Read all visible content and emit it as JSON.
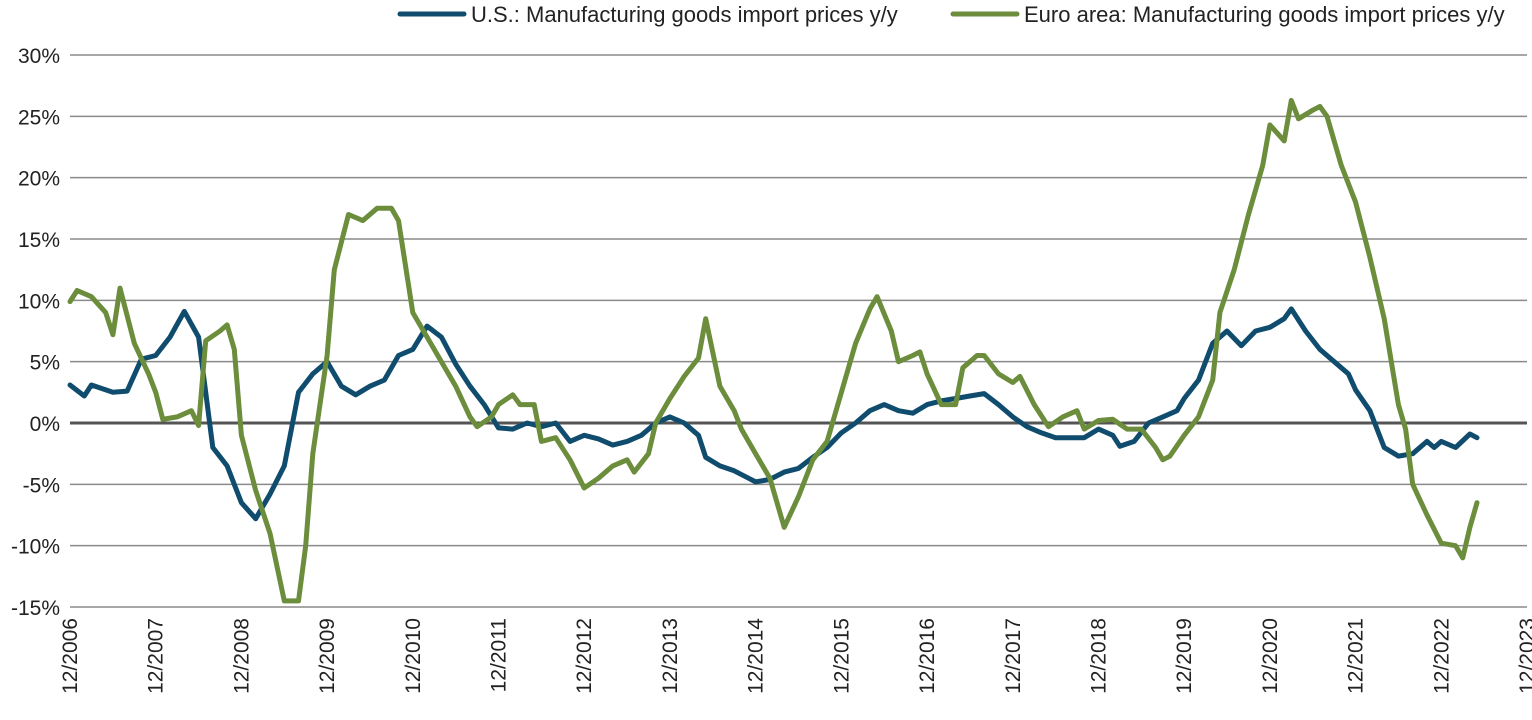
{
  "chart_data": {
    "type": "line",
    "title": "",
    "xlabel": "",
    "ylabel": "",
    "ylim": [
      -15,
      30
    ],
    "y_ticks": [
      30,
      25,
      20,
      15,
      10,
      5,
      0,
      -5,
      -10,
      -15
    ],
    "y_tick_labels": [
      "30%",
      "25%",
      "20%",
      "15%",
      "10%",
      "5%",
      "0%",
      "-5%",
      "-10%",
      "-15%"
    ],
    "x_tick_labels": [
      "12/2006",
      "12/2007",
      "12/2008",
      "12/2009",
      "12/2010",
      "12/2011",
      "12/2012",
      "12/2013",
      "12/2014",
      "12/2015",
      "12/2016",
      "12/2017",
      "12/2018",
      "12/2019",
      "12/2020",
      "12/2021",
      "12/2022",
      "12/2023"
    ],
    "x_start": "12/2006",
    "x_end": "12/2023",
    "grid": true,
    "legend_position": "top",
    "series": [
      {
        "name": "U.S.: Manufacturing goods import prices y/y",
        "color": "#0f4c6e",
        "points": [
          [
            "12/2006",
            3.1
          ],
          [
            "02/2007",
            2.2
          ],
          [
            "03/2007",
            3.1
          ],
          [
            "06/2007",
            2.5
          ],
          [
            "08/2007",
            2.6
          ],
          [
            "10/2007",
            5.2
          ],
          [
            "12/2007",
            5.5
          ],
          [
            "02/2008",
            7.0
          ],
          [
            "04/2008",
            9.1
          ],
          [
            "06/2008",
            7.0
          ],
          [
            "08/2008",
            -2.0
          ],
          [
            "10/2008",
            -3.5
          ],
          [
            "12/2008",
            -6.5
          ],
          [
            "02/2009",
            -7.8
          ],
          [
            "04/2009",
            -5.8
          ],
          [
            "06/2009",
            -3.5
          ],
          [
            "08/2009",
            2.5
          ],
          [
            "10/2009",
            4.0
          ],
          [
            "12/2009",
            5.0
          ],
          [
            "02/2010",
            3.0
          ],
          [
            "04/2010",
            2.3
          ],
          [
            "06/2010",
            3.0
          ],
          [
            "08/2010",
            3.5
          ],
          [
            "10/2010",
            5.5
          ],
          [
            "12/2010",
            6.0
          ],
          [
            "02/2011",
            7.9
          ],
          [
            "04/2011",
            7.0
          ],
          [
            "06/2011",
            4.8
          ],
          [
            "08/2011",
            3.0
          ],
          [
            "10/2011",
            1.5
          ],
          [
            "12/2011",
            -0.4
          ],
          [
            "02/2012",
            -0.5
          ],
          [
            "04/2012",
            0.0
          ],
          [
            "06/2012",
            -0.3
          ],
          [
            "08/2012",
            0.0
          ],
          [
            "10/2012",
            -1.5
          ],
          [
            "12/2012",
            -1.0
          ],
          [
            "02/2013",
            -1.3
          ],
          [
            "04/2013",
            -1.8
          ],
          [
            "06/2013",
            -1.5
          ],
          [
            "08/2013",
            -1.0
          ],
          [
            "10/2013",
            0.0
          ],
          [
            "12/2013",
            0.5
          ],
          [
            "02/2014",
            0.0
          ],
          [
            "04/2014",
            -1.0
          ],
          [
            "05/2014",
            -2.8
          ],
          [
            "07/2014",
            -3.5
          ],
          [
            "09/2014",
            -3.9
          ],
          [
            "11/2014",
            -4.5
          ],
          [
            "12/2014",
            -4.8
          ],
          [
            "02/2015",
            -4.6
          ],
          [
            "04/2015",
            -4.0
          ],
          [
            "06/2015",
            -3.7
          ],
          [
            "08/2015",
            -2.8
          ],
          [
            "10/2015",
            -2.0
          ],
          [
            "12/2015",
            -0.8
          ],
          [
            "02/2016",
            0.0
          ],
          [
            "04/2016",
            1.0
          ],
          [
            "06/2016",
            1.5
          ],
          [
            "08/2016",
            1.0
          ],
          [
            "10/2016",
            0.8
          ],
          [
            "12/2016",
            1.5
          ],
          [
            "02/2017",
            1.8
          ],
          [
            "04/2017",
            2.0
          ],
          [
            "06/2017",
            2.2
          ],
          [
            "08/2017",
            2.4
          ],
          [
            "10/2017",
            1.5
          ],
          [
            "12/2017",
            0.5
          ],
          [
            "02/2018",
            -0.3
          ],
          [
            "04/2018",
            -0.8
          ],
          [
            "06/2018",
            -1.2
          ],
          [
            "08/2018",
            -1.2
          ],
          [
            "10/2018",
            -1.2
          ],
          [
            "12/2018",
            -0.5
          ],
          [
            "02/2019",
            -1.0
          ],
          [
            "03/2019",
            -1.9
          ],
          [
            "05/2019",
            -1.5
          ],
          [
            "07/2019",
            0.0
          ],
          [
            "09/2019",
            0.5
          ],
          [
            "11/2019",
            1.0
          ],
          [
            "12/2019",
            2.0
          ],
          [
            "02/2020",
            3.5
          ],
          [
            "04/2020",
            6.5
          ],
          [
            "06/2020",
            7.5
          ],
          [
            "08/2020",
            6.3
          ],
          [
            "10/2020",
            7.5
          ],
          [
            "12/2020",
            7.8
          ],
          [
            "02/2021",
            8.5
          ],
          [
            "03/2021",
            9.3
          ],
          [
            "05/2021",
            7.5
          ],
          [
            "07/2021",
            6.0
          ],
          [
            "09/2021",
            5.0
          ],
          [
            "11/2021",
            4.0
          ],
          [
            "12/2021",
            2.7
          ],
          [
            "02/2022",
            1.0
          ],
          [
            "04/2022",
            -2.0
          ],
          [
            "06/2022",
            -2.7
          ],
          [
            "08/2022",
            -2.5
          ],
          [
            "10/2022",
            -1.5
          ],
          [
            "11/2022",
            -2.0
          ],
          [
            "12/2022",
            -1.5
          ],
          [
            "02/2023",
            -2.0
          ],
          [
            "04/2023",
            -0.9
          ],
          [
            "05/2023",
            -1.2
          ]
        ]
      },
      {
        "name": "Euro area: Manufacturing goods import prices y/y",
        "color": "#6b8d3c",
        "points": [
          [
            "12/2006",
            9.9
          ],
          [
            "01/2007",
            10.8
          ],
          [
            "03/2007",
            10.3
          ],
          [
            "05/2007",
            9.0
          ],
          [
            "06/2007",
            7.2
          ],
          [
            "07/2007",
            11.0
          ],
          [
            "09/2007",
            6.5
          ],
          [
            "11/2007",
            4.0
          ],
          [
            "12/2007",
            2.5
          ],
          [
            "01/2008",
            0.3
          ],
          [
            "03/2008",
            0.5
          ],
          [
            "05/2008",
            1.0
          ],
          [
            "06/2008",
            -0.2
          ],
          [
            "07/2008",
            6.7
          ],
          [
            "09/2008",
            7.5
          ],
          [
            "10/2008",
            8.0
          ],
          [
            "11/2008",
            6.0
          ],
          [
            "12/2008",
            -1.0
          ],
          [
            "02/2009",
            -5.5
          ],
          [
            "04/2009",
            -9.0
          ],
          [
            "06/2009",
            -14.5
          ],
          [
            "08/2009",
            -14.5
          ],
          [
            "09/2009",
            -10.0
          ],
          [
            "10/2009",
            -2.5
          ],
          [
            "12/2009",
            5.5
          ],
          [
            "01/2010",
            12.5
          ],
          [
            "03/2010",
            17.0
          ],
          [
            "05/2010",
            16.5
          ],
          [
            "07/2010",
            17.5
          ],
          [
            "09/2010",
            17.5
          ],
          [
            "10/2010",
            16.5
          ],
          [
            "12/2010",
            9.0
          ],
          [
            "02/2011",
            7.0
          ],
          [
            "04/2011",
            5.0
          ],
          [
            "06/2011",
            3.0
          ],
          [
            "08/2011",
            0.5
          ],
          [
            "09/2011",
            -0.3
          ],
          [
            "11/2011",
            0.5
          ],
          [
            "12/2011",
            1.5
          ],
          [
            "02/2012",
            2.3
          ],
          [
            "03/2012",
            1.5
          ],
          [
            "05/2012",
            1.5
          ],
          [
            "06/2012",
            -1.5
          ],
          [
            "08/2012",
            -1.2
          ],
          [
            "10/2012",
            -3.0
          ],
          [
            "12/2012",
            -5.3
          ],
          [
            "02/2013",
            -4.5
          ],
          [
            "04/2013",
            -3.5
          ],
          [
            "06/2013",
            -3.0
          ],
          [
            "07/2013",
            -4.0
          ],
          [
            "09/2013",
            -2.5
          ],
          [
            "10/2013",
            0.0
          ],
          [
            "12/2013",
            2.0
          ],
          [
            "02/2014",
            3.8
          ],
          [
            "04/2014",
            5.3
          ],
          [
            "05/2014",
            8.5
          ],
          [
            "07/2014",
            3.0
          ],
          [
            "09/2014",
            1.0
          ],
          [
            "10/2014",
            -0.5
          ],
          [
            "12/2014",
            -2.5
          ],
          [
            "02/2015",
            -4.5
          ],
          [
            "04/2015",
            -8.5
          ],
          [
            "06/2015",
            -6.0
          ],
          [
            "08/2015",
            -3.0
          ],
          [
            "10/2015",
            -1.5
          ],
          [
            "12/2015",
            2.5
          ],
          [
            "02/2016",
            6.5
          ],
          [
            "04/2016",
            9.3
          ],
          [
            "05/2016",
            10.3
          ],
          [
            "07/2016",
            7.5
          ],
          [
            "08/2016",
            5.0
          ],
          [
            "10/2016",
            5.5
          ],
          [
            "11/2016",
            5.8
          ],
          [
            "12/2016",
            4.0
          ],
          [
            "02/2017",
            1.5
          ],
          [
            "04/2017",
            1.5
          ],
          [
            "05/2017",
            4.5
          ],
          [
            "07/2017",
            5.5
          ],
          [
            "08/2017",
            5.5
          ],
          [
            "10/2017",
            4.0
          ],
          [
            "12/2017",
            3.3
          ],
          [
            "01/2018",
            3.8
          ],
          [
            "03/2018",
            1.5
          ],
          [
            "05/2018",
            -0.3
          ],
          [
            "07/2018",
            0.5
          ],
          [
            "09/2018",
            1.0
          ],
          [
            "10/2018",
            -0.5
          ],
          [
            "12/2018",
            0.2
          ],
          [
            "02/2019",
            0.3
          ],
          [
            "04/2019",
            -0.5
          ],
          [
            "06/2019",
            -0.5
          ],
          [
            "08/2019",
            -2.0
          ],
          [
            "09/2019",
            -3.0
          ],
          [
            "10/2019",
            -2.7
          ],
          [
            "12/2019",
            -1.0
          ],
          [
            "02/2020",
            0.5
          ],
          [
            "04/2020",
            3.5
          ],
          [
            "05/2020",
            9.0
          ],
          [
            "07/2020",
            12.5
          ],
          [
            "09/2020",
            17.0
          ],
          [
            "11/2020",
            21.0
          ],
          [
            "12/2020",
            24.3
          ],
          [
            "02/2021",
            23.0
          ],
          [
            "03/2021",
            26.3
          ],
          [
            "04/2021",
            24.8
          ],
          [
            "06/2021",
            25.5
          ],
          [
            "07/2021",
            25.8
          ],
          [
            "08/2021",
            25.0
          ],
          [
            "10/2021",
            21.0
          ],
          [
            "12/2021",
            18.0
          ],
          [
            "02/2022",
            13.5
          ],
          [
            "04/2022",
            8.5
          ],
          [
            "06/2022",
            1.5
          ],
          [
            "07/2022",
            -0.5
          ],
          [
            "08/2022",
            -5.0
          ],
          [
            "10/2022",
            -7.5
          ],
          [
            "12/2022",
            -9.8
          ],
          [
            "02/2023",
            -10.0
          ],
          [
            "03/2023",
            -11.0
          ],
          [
            "04/2023",
            -8.5
          ],
          [
            "05/2023",
            -6.5
          ]
        ]
      }
    ]
  }
}
